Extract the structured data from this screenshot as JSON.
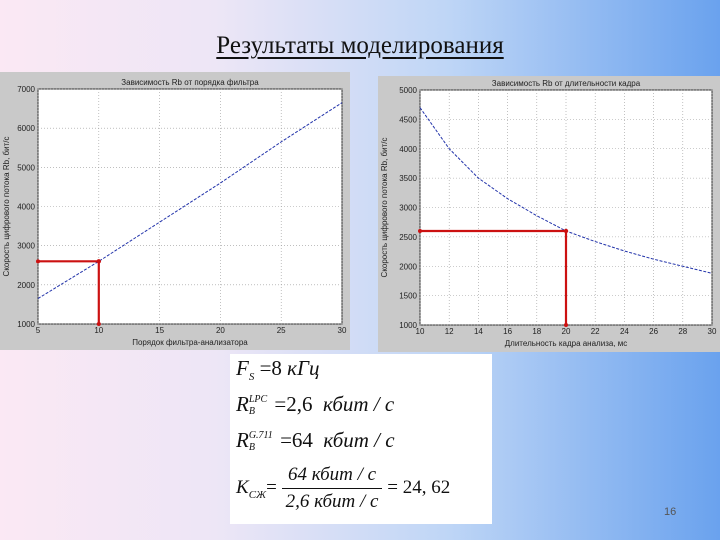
{
  "slide": {
    "title": "Результаты моделирования",
    "page_number": "16",
    "accent": "#cc1111"
  },
  "chart_data": [
    {
      "type": "line",
      "title": "Зависимость Rb от порядка фильтра",
      "xlabel": "Порядок фильтра-анализатора",
      "ylabel": "Скорость цифрового потока Rb, бит/с",
      "xlim": [
        5,
        30
      ],
      "ylim": [
        1000,
        7000
      ],
      "xticks": [
        5,
        10,
        15,
        20,
        25,
        30
      ],
      "yticks": [
        1000,
        2000,
        3000,
        4000,
        5000,
        6000,
        7000
      ],
      "xtick_labels": [
        "5",
        "10",
        "15",
        "20",
        "25",
        "30"
      ],
      "ytick_labels": [
        "1000",
        "2000",
        "3000",
        "4000",
        "5000",
        "6000",
        "7000"
      ],
      "series": [
        {
          "x": [
            5,
            10,
            15,
            20,
            25,
            30
          ],
          "y": [
            1650,
            2600,
            3600,
            4600,
            5650,
            6650
          ]
        }
      ],
      "marker": {
        "x": 10,
        "y": 2600
      }
    },
    {
      "type": "line",
      "title": "Зависимость Rb от длительности кадра",
      "xlabel": "Длительность кадра анализа, мс",
      "ylabel": "Скорость цифрового потока Rb, бит/с",
      "xlim": [
        10,
        30
      ],
      "ylim": [
        1000,
        5000
      ],
      "xticks": [
        10,
        12,
        14,
        16,
        18,
        20,
        22,
        24,
        26,
        28,
        30
      ],
      "yticks": [
        1000,
        1500,
        2000,
        2500,
        3000,
        3500,
        4000,
        4500,
        5000
      ],
      "xtick_labels": [
        "10",
        "12",
        "14",
        "16",
        "18",
        "20",
        "22",
        "24",
        "26",
        "28",
        "30"
      ],
      "ytick_labels": [
        "1000",
        "1500",
        "2000",
        "2500",
        "3000",
        "3500",
        "4000",
        "4500",
        "5000"
      ],
      "series": [
        {
          "x": [
            10,
            12,
            14,
            16,
            18,
            20,
            22,
            24,
            26,
            28,
            30
          ],
          "y": [
            4700,
            4000,
            3500,
            3150,
            2860,
            2600,
            2420,
            2260,
            2120,
            2000,
            1880
          ]
        }
      ],
      "marker": {
        "x": 20,
        "y": 2600
      }
    }
  ],
  "formulas": {
    "fs_label": "F",
    "fs_sub": "S",
    "fs_value": "=8",
    "fs_unit": "кГц",
    "rb_lpc_label": "R",
    "rb_lpc_sup": "LPC",
    "rb_lpc_sub": "B",
    "rb_lpc_value": "=2,6",
    "rb_lpc_unit": "кбит / с",
    "rb_g711_label": "R",
    "rb_g711_sup": "G.711",
    "rb_g711_sub": "B",
    "rb_g711_value": "=64",
    "rb_g711_unit": "кбит / с",
    "k_label": "K",
    "k_sub": "СЖ",
    "k_eq": "=",
    "k_num": "64   кбит / с",
    "k_den": "2,6   кбит / с",
    "k_result": "= 24, 62"
  }
}
